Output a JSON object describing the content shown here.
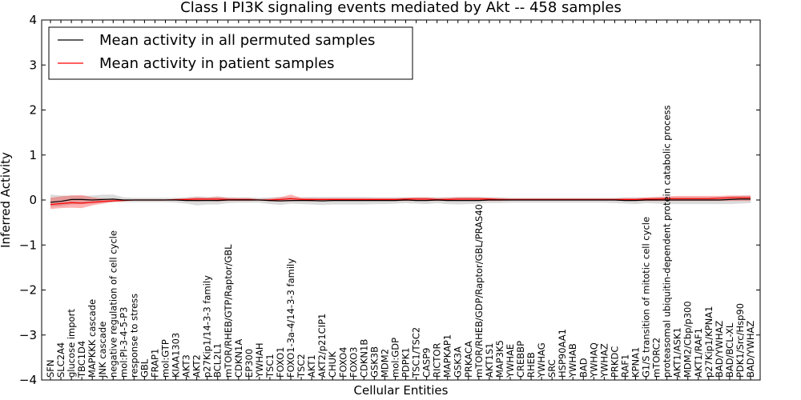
{
  "chart_data": {
    "type": "line",
    "title": "Class I PI3K signaling events mediated by Akt -- 458 samples",
    "xlabel": "Cellular Entities",
    "ylabel": "Inferred Activity",
    "ylim": [
      -4,
      4
    ],
    "yticks": [
      "−4",
      "−3",
      "−2",
      "−1",
      "0",
      "1",
      "2",
      "3",
      "4"
    ],
    "ytick_values": [
      -4,
      -3,
      -2,
      -1,
      0,
      1,
      2,
      3,
      4
    ],
    "legend": {
      "placement": "top-left",
      "entries": [
        {
          "label": "Mean activity in all permuted samples",
          "color": "#000000"
        },
        {
          "label": "Mean activity in patient samples",
          "color": "#ff0000"
        }
      ]
    },
    "categories": [
      "SFN",
      "SLC2A4",
      "glucose import",
      "TBC1D4",
      "MAPKKK cascade",
      "JNK cascade",
      "negative regulation of cell cycle",
      "mol:PI-3-4-5-P3",
      "response to stress",
      "GBL",
      "FRAP1",
      "mol:GTP",
      "KIAA1303",
      "AKT3",
      "AKT2",
      "p27Kip1/14-3-3 family",
      "BCL2L1",
      "mTOR/RHEB/GTP/Raptor/GBL",
      "CDKN1A",
      "EP300",
      "YWHAH",
      "TSC1",
      "FOXO1",
      "FOXO1-3a-4/14-3-3 family",
      "TSC2",
      "AKT1",
      "AKT2/p21CIP1",
      "CHUK",
      "FOXO4",
      "FOXO3",
      "CDKN1B",
      "GSK3B",
      "MDM2",
      "mol:GDP",
      "PDPK1",
      "TSC1/TSC2",
      "CASP9",
      "RICTOR",
      "MAPKAP1",
      "GSK3A",
      "PRKACA",
      "mTOR/RHEB/GDP/Raptor/GBL/PRAS40",
      "AKT1S1",
      "MAP3K5",
      "YWHAE",
      "CREBBP",
      "RHEB",
      "YWHAG",
      "SRC",
      "HSP90AA1",
      "YWHAB",
      "BAD",
      "YWHAQ",
      "YWHAZ",
      "PRKDC",
      "RAF1",
      "KPNA1",
      "G1/S transition of mitotic cell cycle",
      "mTORC2",
      "proteasomal ubiquitin-dependent protein catabolic process",
      "AKT1/ASK1",
      "MDM2/Cbp/p300",
      "AKT1/RAF1",
      "p27Kip1/KPNA1",
      "BAD/YWHAZ",
      "BAD/BCL-XL",
      "PDK1/Src/Hsp90",
      "BAD/YWHAZ"
    ],
    "series": [
      {
        "name": "Mean activity in all permuted samples",
        "color": "#000000",
        "values": [
          -0.05,
          -0.03,
          0.01,
          0.01,
          0.0,
          0.01,
          0.02,
          0.0,
          0.0,
          0.0,
          0.0,
          0.0,
          0.0,
          -0.01,
          -0.01,
          -0.01,
          -0.01,
          0.0,
          0.0,
          0.0,
          0.0,
          -0.01,
          -0.02,
          -0.01,
          -0.01,
          -0.01,
          -0.02,
          -0.01,
          -0.01,
          -0.01,
          -0.01,
          -0.01,
          -0.01,
          -0.01,
          0.0,
          -0.01,
          -0.01,
          0.0,
          -0.01,
          -0.01,
          -0.01,
          -0.01,
          0.0,
          0.0,
          0.0,
          0.0,
          0.0,
          0.0,
          0.0,
          0.0,
          0.0,
          0.0,
          0.0,
          0.0,
          0.0,
          -0.01,
          -0.01,
          0.0,
          0.0,
          0.0,
          0.0,
          0.0,
          0.0,
          0.0,
          0.0,
          0.01,
          0.02,
          0.02
        ],
        "band_low": [
          -0.15,
          -0.14,
          -0.1,
          -0.09,
          -0.08,
          -0.07,
          -0.05,
          -0.05,
          -0.05,
          -0.05,
          -0.05,
          -0.05,
          -0.06,
          -0.08,
          -0.12,
          -0.1,
          -0.1,
          -0.07,
          -0.06,
          -0.06,
          -0.06,
          -0.09,
          -0.11,
          -0.08,
          -0.09,
          -0.1,
          -0.11,
          -0.1,
          -0.1,
          -0.1,
          -0.1,
          -0.09,
          -0.09,
          -0.08,
          -0.07,
          -0.08,
          -0.09,
          -0.07,
          -0.09,
          -0.1,
          -0.09,
          -0.08,
          -0.07,
          -0.07,
          -0.06,
          -0.06,
          -0.06,
          -0.06,
          -0.06,
          -0.06,
          -0.06,
          -0.06,
          -0.06,
          -0.06,
          -0.07,
          -0.08,
          -0.09,
          -0.07,
          -0.08,
          -0.09,
          -0.09,
          -0.09,
          -0.09,
          -0.09,
          -0.09,
          -0.09,
          -0.08,
          -0.07
        ],
        "band_high": [
          0.12,
          0.1,
          0.1,
          0.09,
          0.1,
          0.12,
          0.12,
          0.06,
          0.05,
          0.05,
          0.05,
          0.05,
          0.05,
          0.06,
          0.08,
          0.07,
          0.08,
          0.06,
          0.06,
          0.06,
          0.05,
          0.06,
          0.07,
          0.06,
          0.06,
          0.07,
          0.07,
          0.07,
          0.07,
          0.07,
          0.07,
          0.06,
          0.06,
          0.06,
          0.06,
          0.06,
          0.06,
          0.06,
          0.06,
          0.07,
          0.07,
          0.07,
          0.06,
          0.06,
          0.05,
          0.05,
          0.05,
          0.05,
          0.05,
          0.05,
          0.05,
          0.05,
          0.05,
          0.05,
          0.05,
          0.06,
          0.06,
          0.05,
          0.06,
          0.06,
          0.06,
          0.06,
          0.06,
          0.06,
          0.07,
          0.08,
          0.09,
          0.1
        ]
      },
      {
        "name": "Mean activity in patient samples",
        "color": "#ff0000",
        "values": [
          -0.1,
          -0.08,
          -0.06,
          -0.07,
          -0.05,
          -0.03,
          -0.02,
          -0.01,
          0.0,
          0.0,
          0.0,
          0.0,
          0.01,
          0.01,
          0.02,
          0.02,
          0.02,
          0.01,
          0.01,
          0.01,
          0.0,
          0.0,
          0.01,
          0.03,
          0.01,
          0.01,
          0.01,
          0.01,
          0.01,
          0.01,
          0.01,
          0.01,
          0.01,
          0.01,
          0.02,
          0.02,
          0.02,
          0.01,
          0.01,
          0.02,
          0.02,
          0.02,
          0.02,
          0.01,
          0.01,
          0.01,
          0.01,
          0.01,
          0.01,
          0.01,
          0.01,
          0.01,
          0.01,
          0.01,
          0.01,
          0.01,
          0.01,
          0.02,
          0.02,
          0.03,
          0.03,
          0.03,
          0.03,
          0.03,
          0.04,
          0.05,
          0.05,
          0.05
        ],
        "band_low": [
          -0.2,
          -0.18,
          -0.17,
          -0.18,
          -0.12,
          -0.08,
          -0.04,
          -0.02,
          -0.01,
          -0.01,
          -0.01,
          -0.01,
          -0.01,
          -0.02,
          -0.03,
          -0.02,
          -0.03,
          -0.02,
          -0.02,
          -0.02,
          -0.01,
          -0.03,
          -0.03,
          -0.03,
          -0.02,
          -0.03,
          -0.02,
          -0.02,
          -0.02,
          -0.02,
          -0.02,
          -0.02,
          -0.02,
          -0.02,
          -0.02,
          -0.02,
          -0.02,
          -0.02,
          -0.02,
          -0.02,
          -0.02,
          -0.02,
          -0.02,
          -0.02,
          -0.01,
          -0.01,
          -0.01,
          -0.01,
          -0.01,
          -0.01,
          -0.01,
          -0.01,
          -0.01,
          -0.01,
          -0.01,
          -0.02,
          -0.02,
          -0.02,
          -0.02,
          -0.02,
          -0.02,
          -0.02,
          -0.02,
          -0.02,
          -0.02,
          -0.02,
          -0.02,
          -0.02
        ],
        "band_high": [
          0.05,
          0.08,
          0.1,
          0.11,
          0.06,
          0.03,
          0.02,
          0.01,
          0.01,
          0.01,
          0.01,
          0.01,
          0.02,
          0.04,
          0.06,
          0.05,
          0.07,
          0.05,
          0.04,
          0.04,
          0.02,
          0.03,
          0.06,
          0.12,
          0.05,
          0.04,
          0.04,
          0.04,
          0.04,
          0.04,
          0.04,
          0.04,
          0.04,
          0.04,
          0.05,
          0.06,
          0.06,
          0.04,
          0.05,
          0.06,
          0.06,
          0.06,
          0.05,
          0.04,
          0.03,
          0.03,
          0.03,
          0.03,
          0.03,
          0.03,
          0.03,
          0.03,
          0.03,
          0.03,
          0.03,
          0.04,
          0.04,
          0.06,
          0.07,
          0.08,
          0.09,
          0.09,
          0.09,
          0.09,
          0.09,
          0.1,
          0.1,
          0.1
        ]
      }
    ]
  }
}
